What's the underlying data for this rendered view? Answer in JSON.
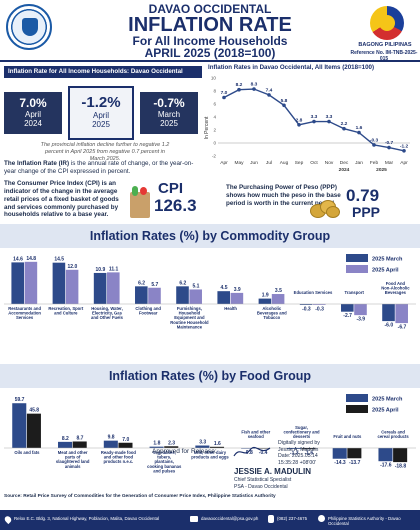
{
  "header": {
    "region": "DAVAO OCCIDENTAL",
    "title": "INFLATION RATE",
    "subtitle": "For All Income Households",
    "period": "APRIL 2025 (2018=100)",
    "brand": "BAGONG PILIPINAS",
    "reference": "Reference No. IM-TNB-2025-015"
  },
  "summary": {
    "label": "Inflation Rate for All Income Households: Davao Occidental",
    "cards": [
      {
        "value": "7.0%",
        "month": "April",
        "year": "2024"
      },
      {
        "value": "-1.2%",
        "month": "April",
        "year": "2025"
      },
      {
        "value": "-0.7%",
        "month": "March",
        "year": "2025"
      }
    ],
    "note": "The provincial inflation decline further to negative 1.2 percent in April 2025 from negative 0.7 percent in March 2025."
  },
  "definitions": {
    "ir_term": "The Inflation Rate (IR)",
    "ir_text": "is the annual rate of change, or the year-on-year change of the CPI expressed in percent.",
    "cpi_text": "The Consumer Price Index (CPI) is an indicator of the change in the average retail prices of a fixed basket of goods and services commonly purchased by households relative to a base year.",
    "cpi_label": "CPI",
    "cpi_value": "126.3",
    "ppp_text": "The Purchasing Power of Peso (PPP) shows how much the peso in the base period is worth in the current period.",
    "ppp_value": "0.79",
    "ppp_label": "PPP"
  },
  "chart_data": [
    {
      "type": "line",
      "title": "Inflation Rates in Davao Occidental, All Items (2018=100)",
      "ylabel": "In Percent",
      "categories": [
        "Apr",
        "May",
        "Jun",
        "Jul",
        "Aug",
        "Sep",
        "Oct",
        "Nov",
        "Dec",
        "Jan",
        "Feb",
        "Mar",
        "Apr"
      ],
      "year_labels": [
        "2024",
        "2025"
      ],
      "values": [
        7.0,
        8.2,
        8.3,
        7.4,
        5.8,
        2.8,
        3.3,
        3.3,
        2.2,
        1.6,
        -0.3,
        -0.7,
        -1.2
      ],
      "value_labels": [
        "7.0",
        "8.2",
        "8.3",
        "7.4",
        "5.8",
        "2.8",
        "3.3",
        "3.3",
        "2.2",
        "1.6",
        "-0.3",
        "-0.7",
        "-1.2"
      ],
      "ylim": [
        -2,
        10
      ],
      "yticks": [
        "10",
        "8",
        "6",
        "4",
        "2",
        "0",
        "-2"
      ],
      "color": "#2d4a8a"
    },
    {
      "type": "bar",
      "title": "Inflation Rates (%) by Commodity Group",
      "categories": [
        "Restaurants and Accommodation Services",
        "Recreation, Sport and Culture",
        "Housing, Water, Electricity, Gas and Other Fuels",
        "Clothing and Footwear",
        "Furnishings, Household Equipment and Routine Household Maintenance",
        "Health",
        "Alcoholic Beverages and Tobacco",
        "Education Services",
        "Transport",
        "Food And Non-Alcoholic Beverages"
      ],
      "series": [
        {
          "name": "2025 March",
          "color": "#2d4a8a",
          "values": [
            14.6,
            14.5,
            10.9,
            6.2,
            6.2,
            4.5,
            1.9,
            -0.3,
            -2.7,
            -6.0
          ],
          "labels": [
            "14.6",
            "14.5",
            "10.9",
            "6.2",
            "6.2",
            "4.5",
            "1.9",
            "-0.3",
            "-2.7",
            "-6.0"
          ]
        },
        {
          "name": "2025 April",
          "color": "#8a84c6",
          "values": [
            14.8,
            12.0,
            11.1,
            5.7,
            5.1,
            3.9,
            3.5,
            -0.3,
            -3.9,
            -6.7
          ],
          "labels": [
            "14.8",
            "12.0",
            "11.1",
            "5.7",
            "5.1",
            "3.9",
            "3.5",
            "-0.3",
            "-3.9",
            "-6.7"
          ]
        }
      ]
    },
    {
      "type": "bar",
      "title": "Inflation Rates (%) by Food Group",
      "categories": [
        "Oils and fats",
        "Meat and other parts of slaughtered land animals",
        "Ready-made food and other food products n.e.c.",
        "Vegetables, tubers, plantains, cooking bananas and pulses",
        "Milk, other dairy products and eggs",
        "Fish and other seafood",
        "Sugar, confectionery and desserts",
        "Fruit and nuts",
        "Cereals and cereal products"
      ],
      "series": [
        {
          "name": "2025 March",
          "color": "#2d4a8a",
          "values": [
            59.7,
            8.2,
            9.8,
            1.8,
            3.3,
            -0.8,
            -1.3,
            -14.3,
            -17.6
          ],
          "labels": [
            "59.7",
            "8.2",
            "9.8",
            "1.8",
            "3.3",
            "-0.8",
            "-1.3",
            "-14.3",
            "-17.6"
          ]
        },
        {
          "name": "2025 April",
          "color": "#1c1c1c",
          "values": [
            45.8,
            8.7,
            7.0,
            2.3,
            1.6,
            -0.4,
            -1.6,
            -13.7,
            -18.8
          ],
          "labels": [
            "45.8",
            "8.7",
            "7.0",
            "2.3",
            "1.6",
            "-0.4",
            "-1.6",
            "-13.7",
            "-18.8"
          ]
        }
      ]
    }
  ],
  "approval": {
    "label": "Approved for Release:",
    "signed_line1": "Digitally signed by",
    "signed_line2": "Jessie A. Madulin",
    "signed_line3": "Date: 2025.05.14",
    "signed_line4": "15:35:28 +08'00'",
    "name": "JESSIE A. MADULIN",
    "role1": "Chief Statistical Specialist",
    "role2": "PSA - Davao Occidental"
  },
  "source": "Source: Retail Price Survey of Commodities for the Generation of Consumer Price Index, Philippine Statistics Authority",
  "footer": {
    "address": "Relox E.C. Bldg. 3, National Highway, Poblacion, Malita, Davao Occidental",
    "email": "davaooccidental@psa.gov.ph",
    "phone": "(082) 237-4675",
    "office": "Philippine Statistics Authority - Davao Occidental"
  },
  "colors": {
    "navy": "#1b2f6b",
    "red": "#c0392b",
    "march": "#2d4a8a",
    "april": "#8a84c6",
    "gold": "#d4a63a"
  }
}
